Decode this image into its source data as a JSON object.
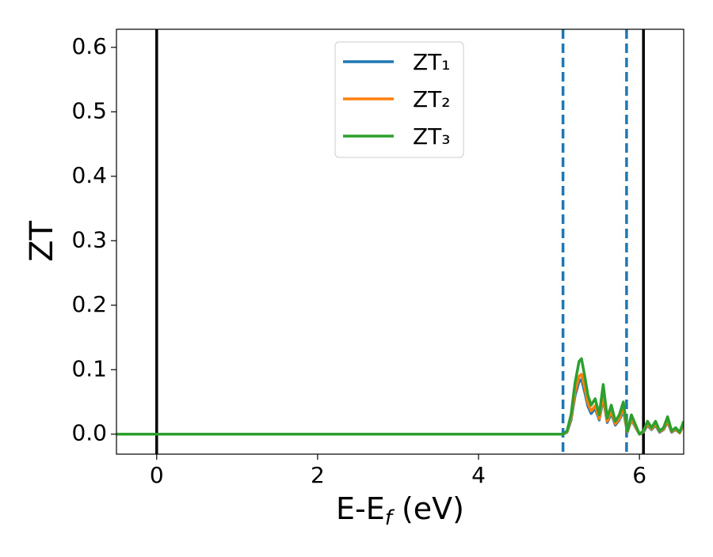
{
  "chart_data": {
    "type": "line",
    "xlabel": [
      "E-E",
      "f",
      " (eV)"
    ],
    "ylabel": "ZT",
    "x": [
      -0.5,
      0,
      1,
      2,
      3,
      4,
      5.0,
      5.05,
      5.1,
      5.15,
      5.2,
      5.25,
      5.28,
      5.32,
      5.36,
      5.4,
      5.45,
      5.5,
      5.55,
      5.6,
      5.65,
      5.7,
      5.75,
      5.8,
      5.85,
      5.9,
      5.95,
      6.0,
      6.05,
      6.1,
      6.15,
      6.2,
      6.25,
      6.3,
      6.35,
      6.4,
      6.45,
      6.5,
      6.55
    ],
    "series": [
      {
        "name": "ZT₁",
        "color": "#1f77b4",
        "values": [
          0,
          0,
          0,
          0,
          0,
          0,
          0,
          0,
          0.003,
          0.022,
          0.06,
          0.082,
          0.085,
          0.065,
          0.043,
          0.032,
          0.04,
          0.022,
          0.055,
          0.018,
          0.032,
          0.014,
          0.022,
          0.036,
          0.003,
          0.022,
          0.011,
          0,
          0.003,
          0.014,
          0.007,
          0.014,
          0.003,
          0.007,
          0.019,
          0.003,
          0.007,
          0.002,
          0.014
        ]
      },
      {
        "name": "ZT₂",
        "color": "#ff7f0e",
        "values": [
          0,
          0,
          0,
          0,
          0,
          0,
          0,
          0,
          0.004,
          0.025,
          0.066,
          0.09,
          0.093,
          0.072,
          0.048,
          0.036,
          0.044,
          0.024,
          0.06,
          0.02,
          0.036,
          0.016,
          0.024,
          0.04,
          0.004,
          0.024,
          0.012,
          0,
          0.004,
          0.016,
          0.008,
          0.016,
          0.004,
          0.008,
          0.021,
          0.004,
          0.008,
          0.002,
          0.016
        ]
      },
      {
        "name": "ZT₃",
        "color": "#2ca02c",
        "values": [
          0,
          0,
          0,
          0,
          0,
          0,
          0,
          0,
          0.005,
          0.03,
          0.08,
          0.113,
          0.117,
          0.09,
          0.06,
          0.045,
          0.055,
          0.03,
          0.077,
          0.025,
          0.045,
          0.02,
          0.03,
          0.05,
          0.005,
          0.03,
          0.015,
          0,
          0.005,
          0.02,
          0.01,
          0.02,
          0.005,
          0.01,
          0.027,
          0.005,
          0.01,
          0.003,
          0.02
        ]
      }
    ],
    "vlines": [
      {
        "x": 0,
        "color": "#000000",
        "style": "solid"
      },
      {
        "x": 6.05,
        "color": "#000000",
        "style": "solid"
      },
      {
        "x": 5.05,
        "color": "#1f77b4",
        "style": "dashed"
      },
      {
        "x": 5.84,
        "color": "#1f77b4",
        "style": "dashed"
      }
    ],
    "xlim": [
      -0.5,
      6.55
    ],
    "xticks": [
      0,
      2,
      4,
      6
    ],
    "ylim": [
      -0.031,
      0.628
    ],
    "yticks": [
      {
        "value": 0,
        "label": "0.0"
      },
      0.1,
      0.2,
      0.3,
      0.4,
      0.5,
      0.6
    ],
    "legend": "upper center"
  }
}
